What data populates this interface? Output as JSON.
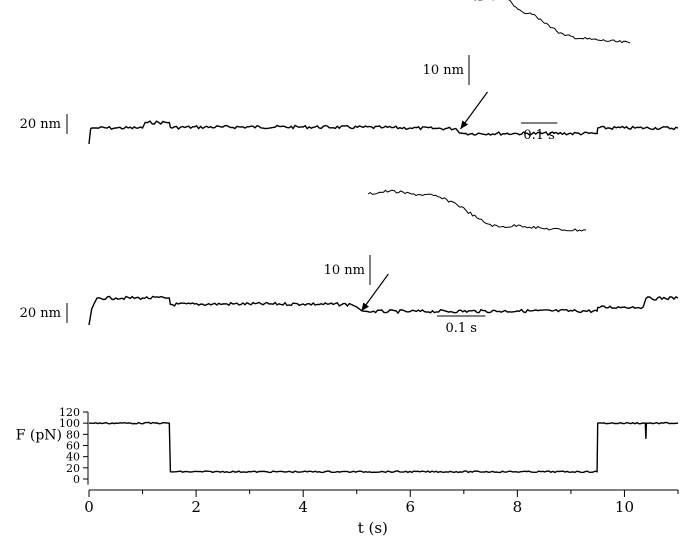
{
  "chart_data": [
    {
      "type": "line",
      "panel": "top-trace",
      "x_unit": "s",
      "scale_bar": {
        "label": "20 nm",
        "value_nm": 20
      },
      "trace": {
        "x": [
          0.0,
          0.03,
          0.05,
          0.1,
          0.5,
          1.0,
          1.05,
          1.1,
          1.5,
          1.52,
          2.5,
          4.0,
          5.5,
          6.0,
          6.5,
          6.85,
          6.92,
          7.0,
          8.0,
          9.49,
          9.5,
          10.0,
          11.0
        ],
        "y": [
          -16,
          -1,
          0,
          0,
          0,
          0,
          5.5,
          5.5,
          5.5,
          0.5,
          1,
          1,
          0.5,
          0,
          -0.5,
          -0.5,
          -5,
          -5.5,
          -5.5,
          -5.5,
          0,
          0,
          0
        ]
      },
      "arrow_at_x": 6.9,
      "inset": {
        "scale_bar_y": {
          "label": "10 nm",
          "value_nm": 10
        },
        "scale_bar_x": {
          "label": "0.1 s",
          "value_s": 0.1
        },
        "trace": {
          "t": [
            0.0,
            0.1,
            0.2,
            0.25,
            0.3,
            0.35,
            0.4,
            0.45,
            0.5,
            0.55,
            0.6,
            0.7,
            0.8,
            1.0
          ],
          "y": [
            10,
            9.5,
            10,
            9.5,
            7,
            5,
            4.5,
            3,
            1,
            -1,
            -2.5,
            -3.5,
            -4,
            -5
          ]
        }
      }
    },
    {
      "type": "line",
      "panel": "bottom-trace",
      "x_unit": "s",
      "scale_bar": {
        "label": "20 nm",
        "value_nm": 20
      },
      "trace": {
        "x": [
          0.0,
          0.05,
          0.1,
          0.15,
          0.5,
          1.0,
          1.5,
          1.52,
          2.5,
          4.0,
          4.9,
          5.0,
          5.1,
          5.2,
          6.0,
          8.0,
          9.49,
          9.5,
          10.0,
          10.35,
          10.4,
          11.0
        ],
        "y": [
          -35,
          -19,
          -13,
          -8,
          -8,
          -8,
          -8,
          -14.5,
          -14,
          -14,
          -14.5,
          -17,
          -21,
          -21.5,
          -21.5,
          -21,
          -21,
          -17.5,
          -17,
          -17,
          -8.5,
          -8
        ]
      },
      "arrow_at_x": 5.05,
      "inset": {
        "scale_bar_y": {
          "label": "10 nm",
          "value_nm": 10
        },
        "scale_bar_x": {
          "label": "0.1 s",
          "value_s": 0.1
        },
        "trace": {
          "t": [
            0.0,
            0.1,
            0.2,
            0.3,
            0.4,
            0.45,
            0.5,
            0.55,
            0.6,
            0.7,
            0.8,
            0.9,
            1.0
          ],
          "y": [
            9,
            10,
            9,
            8.5,
            6,
            3.5,
            1,
            -1,
            -2,
            -1.5,
            -2.5,
            -3,
            -3
          ]
        }
      }
    },
    {
      "type": "line",
      "panel": "force",
      "ylabel": "F (pN)",
      "xlabel": "t (s)",
      "xlim": [
        0,
        11
      ],
      "ylim": [
        -10,
        120
      ],
      "xticks": [
        0,
        2,
        4,
        6,
        8,
        10
      ],
      "yticks": [
        0,
        20,
        40,
        60,
        80,
        100,
        120
      ],
      "trace": {
        "x": [
          0.0,
          0.05,
          1.5,
          1.52,
          4.0,
          9.49,
          9.5,
          10.39,
          10.4,
          10.41,
          11.0
        ],
        "y": [
          100,
          100,
          100,
          13,
          13,
          13,
          100,
          100,
          72,
          100,
          100
        ]
      }
    }
  ]
}
